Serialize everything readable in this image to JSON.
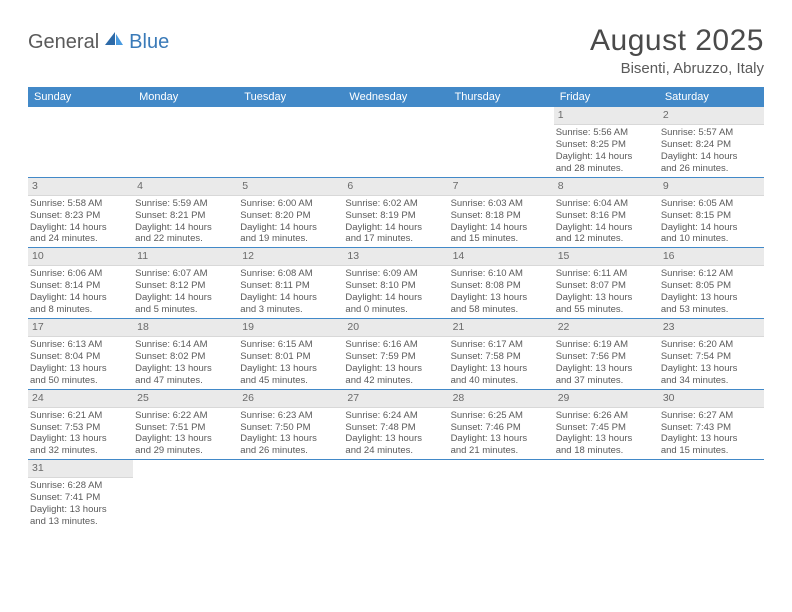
{
  "brand": {
    "part1": "General",
    "part2": "Blue"
  },
  "title": "August 2025",
  "location": "Bisenti, Abruzzo, Italy",
  "colors": {
    "header_bg": "#4289c8",
    "daynum_bg": "#eaeaea",
    "row_border": "#4289c8",
    "text": "#5a5a5a"
  },
  "dow": [
    "Sunday",
    "Monday",
    "Tuesday",
    "Wednesday",
    "Thursday",
    "Friday",
    "Saturday"
  ],
  "weeks": [
    [
      null,
      null,
      null,
      null,
      null,
      {
        "n": "1",
        "sr": "Sunrise: 5:56 AM",
        "ss": "Sunset: 8:25 PM",
        "dl1": "Daylight: 14 hours",
        "dl2": "and 28 minutes."
      },
      {
        "n": "2",
        "sr": "Sunrise: 5:57 AM",
        "ss": "Sunset: 8:24 PM",
        "dl1": "Daylight: 14 hours",
        "dl2": "and 26 minutes."
      }
    ],
    [
      {
        "n": "3",
        "sr": "Sunrise: 5:58 AM",
        "ss": "Sunset: 8:23 PM",
        "dl1": "Daylight: 14 hours",
        "dl2": "and 24 minutes."
      },
      {
        "n": "4",
        "sr": "Sunrise: 5:59 AM",
        "ss": "Sunset: 8:21 PM",
        "dl1": "Daylight: 14 hours",
        "dl2": "and 22 minutes."
      },
      {
        "n": "5",
        "sr": "Sunrise: 6:00 AM",
        "ss": "Sunset: 8:20 PM",
        "dl1": "Daylight: 14 hours",
        "dl2": "and 19 minutes."
      },
      {
        "n": "6",
        "sr": "Sunrise: 6:02 AM",
        "ss": "Sunset: 8:19 PM",
        "dl1": "Daylight: 14 hours",
        "dl2": "and 17 minutes."
      },
      {
        "n": "7",
        "sr": "Sunrise: 6:03 AM",
        "ss": "Sunset: 8:18 PM",
        "dl1": "Daylight: 14 hours",
        "dl2": "and 15 minutes."
      },
      {
        "n": "8",
        "sr": "Sunrise: 6:04 AM",
        "ss": "Sunset: 8:16 PM",
        "dl1": "Daylight: 14 hours",
        "dl2": "and 12 minutes."
      },
      {
        "n": "9",
        "sr": "Sunrise: 6:05 AM",
        "ss": "Sunset: 8:15 PM",
        "dl1": "Daylight: 14 hours",
        "dl2": "and 10 minutes."
      }
    ],
    [
      {
        "n": "10",
        "sr": "Sunrise: 6:06 AM",
        "ss": "Sunset: 8:14 PM",
        "dl1": "Daylight: 14 hours",
        "dl2": "and 8 minutes."
      },
      {
        "n": "11",
        "sr": "Sunrise: 6:07 AM",
        "ss": "Sunset: 8:12 PM",
        "dl1": "Daylight: 14 hours",
        "dl2": "and 5 minutes."
      },
      {
        "n": "12",
        "sr": "Sunrise: 6:08 AM",
        "ss": "Sunset: 8:11 PM",
        "dl1": "Daylight: 14 hours",
        "dl2": "and 3 minutes."
      },
      {
        "n": "13",
        "sr": "Sunrise: 6:09 AM",
        "ss": "Sunset: 8:10 PM",
        "dl1": "Daylight: 14 hours",
        "dl2": "and 0 minutes."
      },
      {
        "n": "14",
        "sr": "Sunrise: 6:10 AM",
        "ss": "Sunset: 8:08 PM",
        "dl1": "Daylight: 13 hours",
        "dl2": "and 58 minutes."
      },
      {
        "n": "15",
        "sr": "Sunrise: 6:11 AM",
        "ss": "Sunset: 8:07 PM",
        "dl1": "Daylight: 13 hours",
        "dl2": "and 55 minutes."
      },
      {
        "n": "16",
        "sr": "Sunrise: 6:12 AM",
        "ss": "Sunset: 8:05 PM",
        "dl1": "Daylight: 13 hours",
        "dl2": "and 53 minutes."
      }
    ],
    [
      {
        "n": "17",
        "sr": "Sunrise: 6:13 AM",
        "ss": "Sunset: 8:04 PM",
        "dl1": "Daylight: 13 hours",
        "dl2": "and 50 minutes."
      },
      {
        "n": "18",
        "sr": "Sunrise: 6:14 AM",
        "ss": "Sunset: 8:02 PM",
        "dl1": "Daylight: 13 hours",
        "dl2": "and 47 minutes."
      },
      {
        "n": "19",
        "sr": "Sunrise: 6:15 AM",
        "ss": "Sunset: 8:01 PM",
        "dl1": "Daylight: 13 hours",
        "dl2": "and 45 minutes."
      },
      {
        "n": "20",
        "sr": "Sunrise: 6:16 AM",
        "ss": "Sunset: 7:59 PM",
        "dl1": "Daylight: 13 hours",
        "dl2": "and 42 minutes."
      },
      {
        "n": "21",
        "sr": "Sunrise: 6:17 AM",
        "ss": "Sunset: 7:58 PM",
        "dl1": "Daylight: 13 hours",
        "dl2": "and 40 minutes."
      },
      {
        "n": "22",
        "sr": "Sunrise: 6:19 AM",
        "ss": "Sunset: 7:56 PM",
        "dl1": "Daylight: 13 hours",
        "dl2": "and 37 minutes."
      },
      {
        "n": "23",
        "sr": "Sunrise: 6:20 AM",
        "ss": "Sunset: 7:54 PM",
        "dl1": "Daylight: 13 hours",
        "dl2": "and 34 minutes."
      }
    ],
    [
      {
        "n": "24",
        "sr": "Sunrise: 6:21 AM",
        "ss": "Sunset: 7:53 PM",
        "dl1": "Daylight: 13 hours",
        "dl2": "and 32 minutes."
      },
      {
        "n": "25",
        "sr": "Sunrise: 6:22 AM",
        "ss": "Sunset: 7:51 PM",
        "dl1": "Daylight: 13 hours",
        "dl2": "and 29 minutes."
      },
      {
        "n": "26",
        "sr": "Sunrise: 6:23 AM",
        "ss": "Sunset: 7:50 PM",
        "dl1": "Daylight: 13 hours",
        "dl2": "and 26 minutes."
      },
      {
        "n": "27",
        "sr": "Sunrise: 6:24 AM",
        "ss": "Sunset: 7:48 PM",
        "dl1": "Daylight: 13 hours",
        "dl2": "and 24 minutes."
      },
      {
        "n": "28",
        "sr": "Sunrise: 6:25 AM",
        "ss": "Sunset: 7:46 PM",
        "dl1": "Daylight: 13 hours",
        "dl2": "and 21 minutes."
      },
      {
        "n": "29",
        "sr": "Sunrise: 6:26 AM",
        "ss": "Sunset: 7:45 PM",
        "dl1": "Daylight: 13 hours",
        "dl2": "and 18 minutes."
      },
      {
        "n": "30",
        "sr": "Sunrise: 6:27 AM",
        "ss": "Sunset: 7:43 PM",
        "dl1": "Daylight: 13 hours",
        "dl2": "and 15 minutes."
      }
    ],
    [
      {
        "n": "31",
        "sr": "Sunrise: 6:28 AM",
        "ss": "Sunset: 7:41 PM",
        "dl1": "Daylight: 13 hours",
        "dl2": "and 13 minutes."
      },
      null,
      null,
      null,
      null,
      null,
      null
    ]
  ]
}
